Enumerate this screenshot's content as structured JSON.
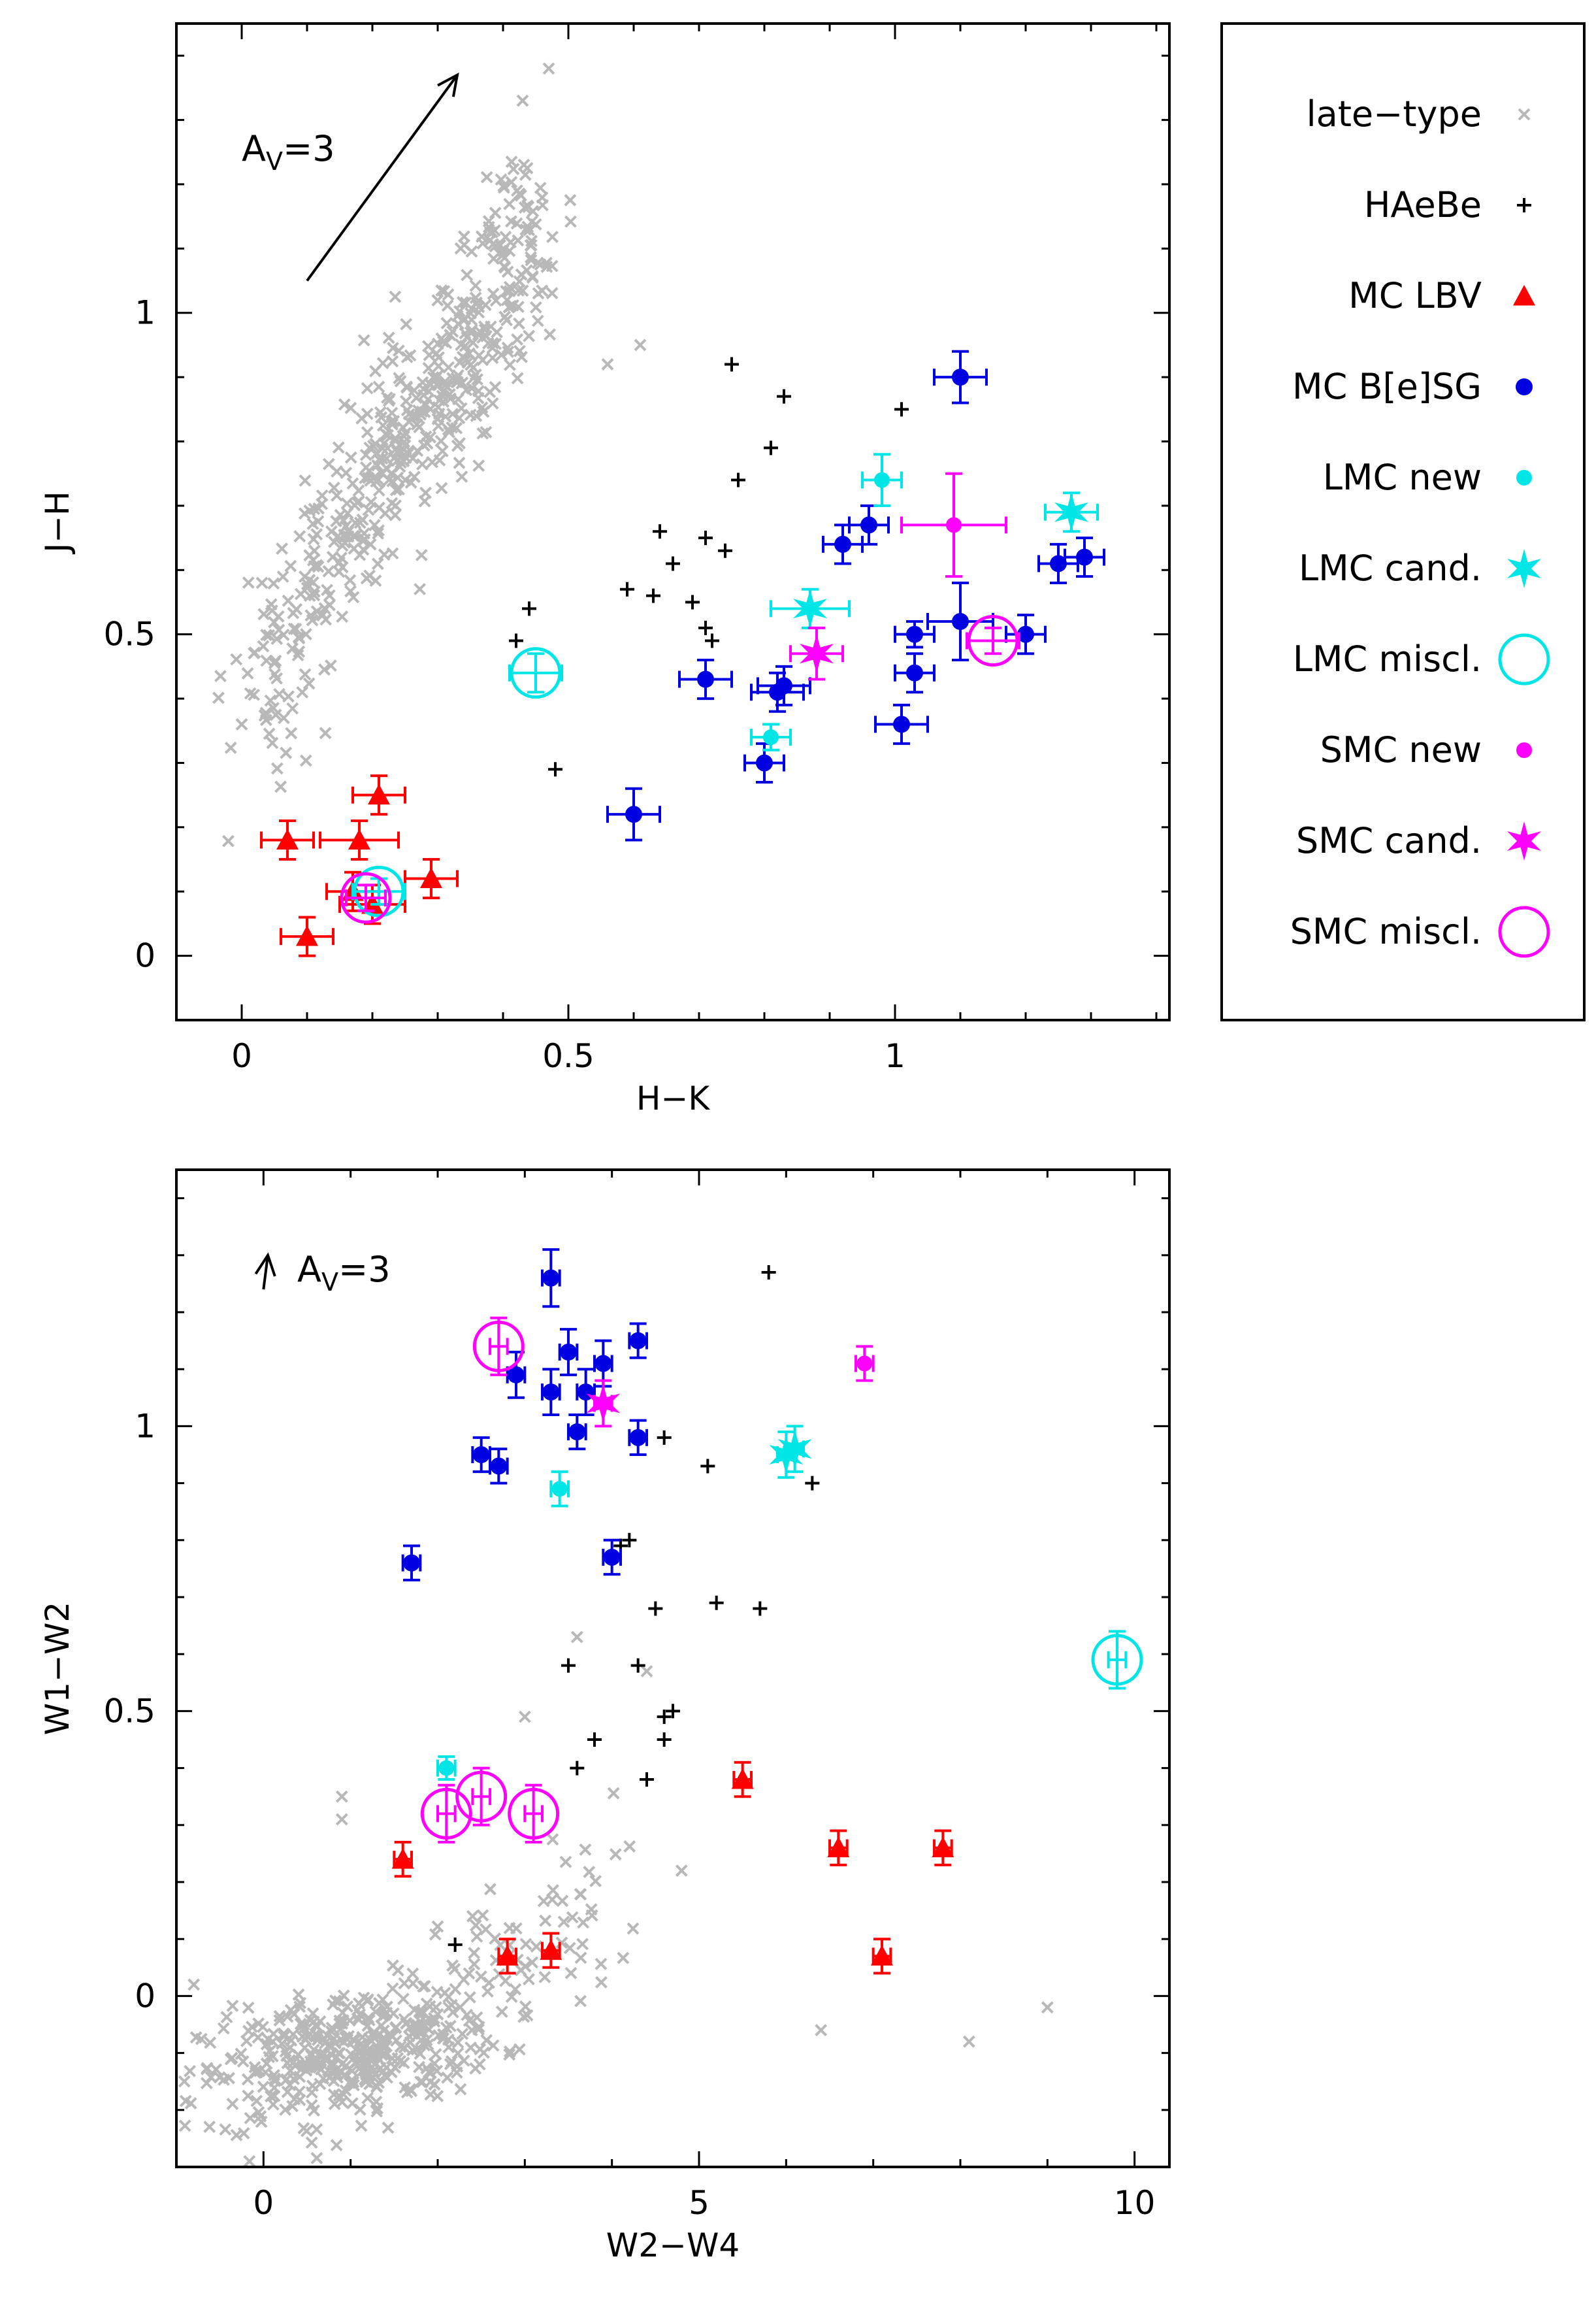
{
  "colors": {
    "late_type": "#b8b8b8",
    "haebe": "#000000",
    "lbv": "#ff0000",
    "bsg": "#0000e0",
    "cyan": "#00e5e5",
    "magenta": "#ff00ff"
  },
  "legend": {
    "entries": [
      {
        "key": "late",
        "label": "late−type"
      },
      {
        "key": "haebe",
        "label": "HAeBe"
      },
      {
        "key": "lbv",
        "label": "MC LBV"
      },
      {
        "key": "bsg",
        "label": "MC B[e]SG"
      },
      {
        "key": "lmcnew",
        "label": "LMC new"
      },
      {
        "key": "lmccand",
        "label": "LMC cand."
      },
      {
        "key": "lmcmiscl",
        "label": "LMC miscl."
      },
      {
        "key": "smcnew",
        "label": "SMC new"
      },
      {
        "key": "smccand",
        "label": "SMC cand."
      },
      {
        "key": "smcmiscl",
        "label": "SMC miscl."
      }
    ]
  },
  "chart_data": [
    {
      "type": "scatter",
      "title": "",
      "xlabel": "H−K",
      "ylabel": "J−H",
      "xlim": [
        -0.1,
        1.42
      ],
      "ylim": [
        -0.1,
        1.45
      ],
      "xticks": [
        0,
        0.5,
        1
      ],
      "yticks": [
        0,
        0.5,
        1
      ],
      "xtick_labels": [
        "0",
        "0.5",
        "1"
      ],
      "ytick_labels": [
        "0",
        "0.5",
        "1"
      ],
      "reddening": {
        "label_main": "A",
        "label_sub": "V",
        "label_tail": "=3",
        "from": [
          0.1,
          1.05
        ],
        "to": [
          0.33,
          1.37
        ]
      },
      "series": [
        {
          "key": "haebe",
          "name": "HAeBe",
          "points": [
            [
              0.75,
              0.92
            ],
            [
              0.83,
              0.87
            ],
            [
              0.81,
              0.79
            ],
            [
              1.01,
              0.85
            ],
            [
              0.76,
              0.74
            ],
            [
              0.64,
              0.66
            ],
            [
              0.66,
              0.61
            ],
            [
              0.71,
              0.65
            ],
            [
              0.74,
              0.63
            ],
            [
              0.59,
              0.57
            ],
            [
              0.63,
              0.56
            ],
            [
              0.69,
              0.55
            ],
            [
              0.71,
              0.51
            ],
            [
              0.72,
              0.49
            ],
            [
              0.44,
              0.54
            ],
            [
              0.42,
              0.49
            ],
            [
              0.48,
              0.29
            ]
          ]
        },
        {
          "key": "lbv",
          "name": "MC LBV",
          "points": [
            [
              0.07,
              0.18,
              0.04,
              0.03
            ],
            [
              0.18,
              0.18,
              0.06,
              0.03
            ],
            [
              0.21,
              0.25,
              0.04,
              0.03
            ],
            [
              0.29,
              0.12,
              0.04,
              0.03
            ],
            [
              0.1,
              0.03,
              0.04,
              0.03
            ],
            [
              0.2,
              0.08,
              0.05,
              0.03
            ],
            [
              0.17,
              0.1,
              0.04,
              0.03
            ]
          ]
        },
        {
          "key": "bsg",
          "name": "MC B[e]SG",
          "points": [
            [
              1.1,
              0.9,
              0.04,
              0.04
            ],
            [
              0.6,
              0.22,
              0.04,
              0.04
            ],
            [
              0.71,
              0.43,
              0.04,
              0.03
            ],
            [
              0.83,
              0.42,
              0.04,
              0.03
            ],
            [
              0.8,
              0.3,
              0.03,
              0.03
            ],
            [
              0.82,
              0.41,
              0.04,
              0.03
            ],
            [
              0.92,
              0.64,
              0.03,
              0.03
            ],
            [
              0.96,
              0.67,
              0.03,
              0.03
            ],
            [
              1.03,
              0.5,
              0.03,
              0.02
            ],
            [
              1.1,
              0.52,
              0.05,
              0.06
            ],
            [
              1.03,
              0.44,
              0.03,
              0.03
            ],
            [
              1.01,
              0.36,
              0.04,
              0.03
            ],
            [
              1.2,
              0.5,
              0.03,
              0.03
            ],
            [
              1.25,
              0.61,
              0.03,
              0.03
            ],
            [
              1.29,
              0.62,
              0.03,
              0.03
            ]
          ]
        },
        {
          "key": "lmcnew",
          "name": "LMC new",
          "points": [
            [
              0.81,
              0.34,
              0.03,
              0.02
            ],
            [
              0.98,
              0.74,
              0.03,
              0.04
            ]
          ]
        },
        {
          "key": "lmccand",
          "name": "LMC cand.",
          "points": [
            [
              0.87,
              0.54,
              0.06,
              0.03
            ],
            [
              1.27,
              0.69,
              0.04,
              0.03
            ]
          ]
        },
        {
          "key": "lmcmiscl",
          "name": "LMC miscl.",
          "points": [
            [
              0.45,
              0.44,
              0.04,
              0.03
            ],
            [
              0.21,
              0.1,
              0.04,
              0.02
            ]
          ]
        },
        {
          "key": "smcnew",
          "name": "SMC new",
          "points": [
            [
              1.09,
              0.67,
              0.08,
              0.08
            ]
          ]
        },
        {
          "key": "smccand",
          "name": "SMC cand.",
          "points": [
            [
              0.88,
              0.47,
              0.04,
              0.04
            ]
          ]
        },
        {
          "key": "smcmiscl",
          "name": "SMC miscl.",
          "points": [
            [
              1.15,
              0.49,
              0.04,
              0.02
            ],
            [
              0.19,
              0.09,
              0.03,
              0.02
            ]
          ]
        }
      ]
    },
    {
      "type": "scatter",
      "title": "",
      "xlabel": "W2−W4",
      "ylabel": "W1−W2",
      "xlim": [
        -1.0,
        10.4
      ],
      "ylim": [
        -0.3,
        1.45
      ],
      "xticks": [
        0,
        5,
        10
      ],
      "yticks": [
        0,
        0.5,
        1
      ],
      "xtick_labels": [
        "0",
        "5",
        "10"
      ],
      "ytick_labels": [
        "0",
        "0.5",
        "1"
      ],
      "reddening": {
        "label_main": "A",
        "label_sub": "V",
        "label_tail": "=3",
        "from": [
          0.0,
          1.24
        ],
        "to": [
          0.05,
          1.3
        ]
      },
      "series": [
        {
          "key": "haebe",
          "name": "HAeBe",
          "points": [
            [
              5.8,
              1.27
            ],
            [
              5.1,
              0.93
            ],
            [
              6.3,
              0.9
            ],
            [
              4.6,
              0.98
            ],
            [
              4.2,
              0.8
            ],
            [
              4.1,
              0.79
            ],
            [
              4.5,
              0.68
            ],
            [
              5.2,
              0.69
            ],
            [
              5.7,
              0.68
            ],
            [
              3.5,
              0.58
            ],
            [
              4.3,
              0.58
            ],
            [
              4.6,
              0.49
            ],
            [
              4.7,
              0.5
            ],
            [
              4.6,
              0.45
            ],
            [
              3.8,
              0.45
            ],
            [
              3.6,
              0.4
            ],
            [
              4.4,
              0.38
            ],
            [
              2.2,
              0.09
            ]
          ]
        },
        {
          "key": "lbv",
          "name": "MC LBV",
          "points": [
            [
              5.5,
              0.38,
              0.1,
              0.03
            ],
            [
              6.6,
              0.26,
              0.1,
              0.03
            ],
            [
              7.8,
              0.26,
              0.1,
              0.03
            ],
            [
              7.1,
              0.07,
              0.1,
              0.03
            ],
            [
              2.8,
              0.07,
              0.1,
              0.03
            ],
            [
              3.3,
              0.08,
              0.1,
              0.03
            ],
            [
              1.6,
              0.24,
              0.1,
              0.03
            ]
          ]
        },
        {
          "key": "bsg",
          "name": "MC B[e]SG",
          "points": [
            [
              3.3,
              1.26,
              0.1,
              0.05
            ],
            [
              3.5,
              1.13,
              0.1,
              0.04
            ],
            [
              4.3,
              1.15,
              0.1,
              0.03
            ],
            [
              3.9,
              1.11,
              0.1,
              0.04
            ],
            [
              2.9,
              1.09,
              0.1,
              0.04
            ],
            [
              3.3,
              1.06,
              0.1,
              0.04
            ],
            [
              3.7,
              1.06,
              0.1,
              0.04
            ],
            [
              3.6,
              0.99,
              0.1,
              0.03
            ],
            [
              4.3,
              0.98,
              0.1,
              0.03
            ],
            [
              2.5,
              0.95,
              0.1,
              0.03
            ],
            [
              2.7,
              0.93,
              0.1,
              0.03
            ],
            [
              1.7,
              0.76,
              0.1,
              0.03
            ],
            [
              4.0,
              0.77,
              0.1,
              0.03
            ]
          ]
        },
        {
          "key": "lmcnew",
          "name": "LMC new",
          "points": [
            [
              3.4,
              0.89,
              0.1,
              0.03
            ],
            [
              2.1,
              0.4,
              0.1,
              0.02
            ]
          ]
        },
        {
          "key": "lmccand",
          "name": "LMC cand.",
          "points": [
            [
              6.0,
              0.95,
              0.1,
              0.04
            ],
            [
              6.1,
              0.96,
              0.1,
              0.04
            ]
          ]
        },
        {
          "key": "lmcmiscl",
          "name": "LMC miscl.",
          "points": [
            [
              9.8,
              0.59,
              0.1,
              0.05
            ]
          ]
        },
        {
          "key": "smcnew",
          "name": "SMC new",
          "points": [
            [
              6.9,
              1.11,
              0.1,
              0.03
            ]
          ]
        },
        {
          "key": "smccand",
          "name": "SMC cand.",
          "points": [
            [
              3.9,
              1.04,
              0.1,
              0.04
            ]
          ]
        },
        {
          "key": "smcmiscl",
          "name": "SMC miscl.",
          "points": [
            [
              2.7,
              1.14,
              0.1,
              0.05
            ],
            [
              3.1,
              0.32,
              0.1,
              0.05
            ],
            [
              2.5,
              0.35,
              0.1,
              0.05
            ],
            [
              2.1,
              0.32,
              0.1,
              0.05
            ]
          ]
        }
      ]
    }
  ]
}
